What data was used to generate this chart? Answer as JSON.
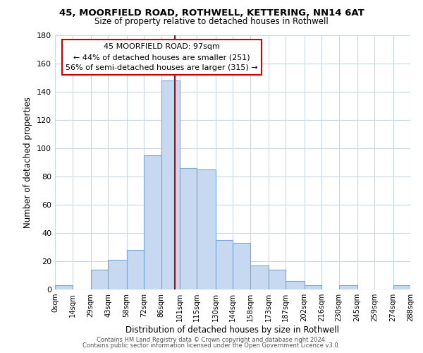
{
  "title1": "45, MOORFIELD ROAD, ROTHWELL, KETTERING, NN14 6AT",
  "title2": "Size of property relative to detached houses in Rothwell",
  "xlabel": "Distribution of detached houses by size in Rothwell",
  "ylabel": "Number of detached properties",
  "bar_edges": [
    0,
    14,
    29,
    43,
    58,
    72,
    86,
    101,
    115,
    130,
    144,
    158,
    173,
    187,
    202,
    216,
    230,
    245,
    259,
    274,
    288
  ],
  "bar_heights": [
    3,
    0,
    14,
    21,
    28,
    95,
    148,
    86,
    85,
    35,
    33,
    17,
    14,
    6,
    3,
    0,
    3,
    0,
    0,
    3
  ],
  "bar_color": "#c6d9f0",
  "bar_edgecolor": "#7ba7d4",
  "tick_labels": [
    "0sqm",
    "14sqm",
    "29sqm",
    "43sqm",
    "58sqm",
    "72sqm",
    "86sqm",
    "101sqm",
    "115sqm",
    "130sqm",
    "144sqm",
    "158sqm",
    "173sqm",
    "187sqm",
    "202sqm",
    "216sqm",
    "230sqm",
    "245sqm",
    "259sqm",
    "274sqm",
    "288sqm"
  ],
  "vline_x": 97,
  "vline_color": "#cc0000",
  "annotation_title": "45 MOORFIELD ROAD: 97sqm",
  "annotation_line1": "← 44% of detached houses are smaller (251)",
  "annotation_line2": "56% of semi-detached houses are larger (315) →",
  "annotation_box_color": "#ffffff",
  "annotation_box_edgecolor": "#cc0000",
  "ylim": [
    0,
    180
  ],
  "yticks": [
    0,
    20,
    40,
    60,
    80,
    100,
    120,
    140,
    160,
    180
  ],
  "footer1": "Contains HM Land Registry data © Crown copyright and database right 2024.",
  "footer2": "Contains public sector information licensed under the Open Government Licence v3.0.",
  "background_color": "#ffffff",
  "grid_color": "#c8d8e8"
}
